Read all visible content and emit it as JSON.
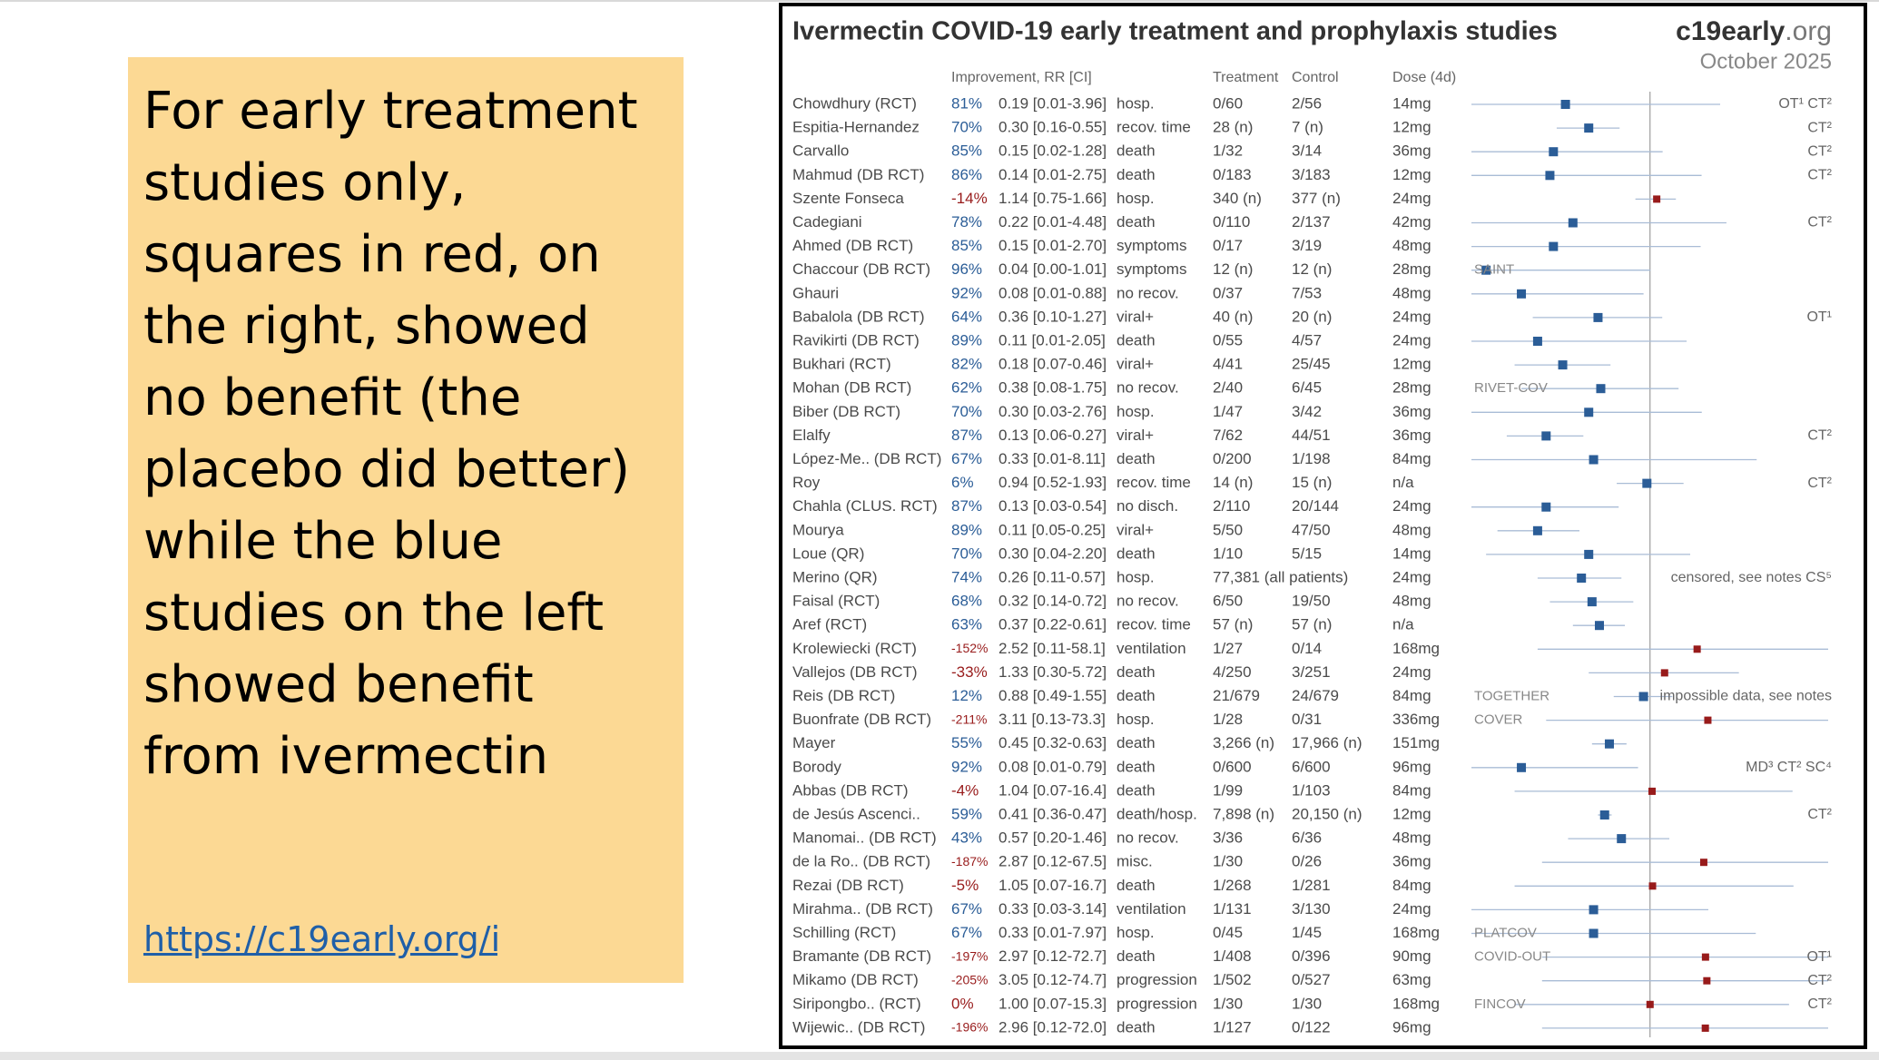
{
  "slide": {
    "text": "For early treatment studies only, squares in red, on the right, showed no benefit (the placebo did better) while the blue studies on the left showed benefit from ivermectin",
    "link": "https://c19early.org/i"
  },
  "forest": {
    "title": "Ivermectin COVID-19 early treatment and prophylaxis studies",
    "brand_main": "c19early",
    "brand_suffix": ".org",
    "date": "October 2025",
    "headers": {
      "improvement": "Improvement, RR [CI]",
      "treatment": "Treatment",
      "control": "Control",
      "dose": "Dose (4d)"
    },
    "xlim": [
      0.03,
      33
    ],
    "log_scale": true,
    "reference": 1,
    "colors": {
      "benefit": "#2b5d97",
      "harm": "#981b1b"
    },
    "rows": [
      {
        "name": "Chowdhury (RCT)",
        "improvement": "81%",
        "rr": 0.19,
        "ci": [
          0.01,
          3.96
        ],
        "rr_label": "0.19 [0.01-3.96]",
        "outcome": "hosp.",
        "treatment": "0/60",
        "control": "2/56",
        "dose": "14mg",
        "note": "OT¹ CT²"
      },
      {
        "name": "Espitia-Hernandez",
        "improvement": "70%",
        "rr": 0.3,
        "ci": [
          0.16,
          0.55
        ],
        "rr_label": "0.30 [0.16-0.55]",
        "outcome": "recov. time",
        "treatment": "28 (n)",
        "control": "7 (n)",
        "dose": "12mg",
        "note": "CT²"
      },
      {
        "name": "Carvallo",
        "improvement": "85%",
        "rr": 0.15,
        "ci": [
          0.02,
          1.28
        ],
        "rr_label": "0.15 [0.02-1.28]",
        "outcome": "death",
        "treatment": "1/32",
        "control": "3/14",
        "dose": "36mg",
        "note": "CT²"
      },
      {
        "name": "Mahmud (DB RCT)",
        "improvement": "86%",
        "rr": 0.14,
        "ci": [
          0.01,
          2.75
        ],
        "rr_label": "0.14 [0.01-2.75]",
        "outcome": "death",
        "treatment": "0/183",
        "control": "3/183",
        "dose": "12mg",
        "note": "CT²"
      },
      {
        "name": "Szente Fonseca",
        "improvement": "-14%",
        "rr": 1.14,
        "ci": [
          0.75,
          1.66
        ],
        "rr_label": "1.14 [0.75-1.66]",
        "outcome": "hosp.",
        "treatment": "340 (n)",
        "control": "377 (n)",
        "dose": "24mg"
      },
      {
        "name": "Cadegiani",
        "improvement": "78%",
        "rr": 0.22,
        "ci": [
          0.01,
          4.48
        ],
        "rr_label": "0.22 [0.01-4.48]",
        "outcome": "death",
        "treatment": "0/110",
        "control": "2/137",
        "dose": "42mg",
        "note": "CT²"
      },
      {
        "name": "Ahmed (DB RCT)",
        "improvement": "85%",
        "rr": 0.15,
        "ci": [
          0.01,
          2.7
        ],
        "rr_label": "0.15 [0.01-2.70]",
        "outcome": "symptoms",
        "treatment": "0/17",
        "control": "3/19",
        "dose": "48mg"
      },
      {
        "name": "Chaccour (DB RCT)",
        "improvement": "96%",
        "rr": 0.04,
        "ci": [
          0.0,
          1.01
        ],
        "rr_label": "0.04 [0.00-1.01]",
        "outcome": "symptoms",
        "treatment": "12 (n)",
        "control": "12 (n)",
        "dose": "28mg",
        "trial": "SAINT"
      },
      {
        "name": "Ghauri",
        "improvement": "92%",
        "rr": 0.08,
        "ci": [
          0.01,
          0.88
        ],
        "rr_label": "0.08 [0.01-0.88]",
        "outcome": "no recov.",
        "treatment": "0/37",
        "control": "7/53",
        "dose": "48mg"
      },
      {
        "name": "Babalola (DB RCT)",
        "improvement": "64%",
        "rr": 0.36,
        "ci": [
          0.1,
          1.27
        ],
        "rr_label": "0.36 [0.10-1.27]",
        "outcome": "viral+",
        "treatment": "40 (n)",
        "control": "20 (n)",
        "dose": "24mg",
        "note": "OT¹"
      },
      {
        "name": "Ravikirti (DB RCT)",
        "improvement": "89%",
        "rr": 0.11,
        "ci": [
          0.01,
          2.05
        ],
        "rr_label": "0.11 [0.01-2.05]",
        "outcome": "death",
        "treatment": "0/55",
        "control": "4/57",
        "dose": "24mg"
      },
      {
        "name": "Bukhari (RCT)",
        "improvement": "82%",
        "rr": 0.18,
        "ci": [
          0.07,
          0.46
        ],
        "rr_label": "0.18 [0.07-0.46]",
        "outcome": "viral+",
        "treatment": "4/41",
        "control": "25/45",
        "dose": "12mg"
      },
      {
        "name": "Mohan (DB RCT)",
        "improvement": "62%",
        "rr": 0.38,
        "ci": [
          0.08,
          1.75
        ],
        "rr_label": "0.38 [0.08-1.75]",
        "outcome": "no recov.",
        "treatment": "2/40",
        "control": "6/45",
        "dose": "28mg",
        "trial": "RIVET-COV"
      },
      {
        "name": "Biber (DB RCT)",
        "improvement": "70%",
        "rr": 0.3,
        "ci": [
          0.03,
          2.76
        ],
        "rr_label": "0.30 [0.03-2.76]",
        "outcome": "hosp.",
        "treatment": "1/47",
        "control": "3/42",
        "dose": "36mg"
      },
      {
        "name": "Elalfy",
        "improvement": "87%",
        "rr": 0.13,
        "ci": [
          0.06,
          0.27
        ],
        "rr_label": "0.13 [0.06-0.27]",
        "outcome": "viral+",
        "treatment": "7/62",
        "control": "44/51",
        "dose": "36mg",
        "note": "CT²"
      },
      {
        "name": "López-Me.. (DB RCT)",
        "improvement": "67%",
        "rr": 0.33,
        "ci": [
          0.01,
          8.11
        ],
        "rr_label": "0.33 [0.01-8.11]",
        "outcome": "death",
        "treatment": "0/200",
        "control": "1/198",
        "dose": "84mg"
      },
      {
        "name": "Roy",
        "improvement": "6%",
        "rr": 0.94,
        "ci": [
          0.52,
          1.93
        ],
        "rr_label": "0.94 [0.52-1.93]",
        "outcome": "recov. time",
        "treatment": "14 (n)",
        "control": "15 (n)",
        "dose": "n/a",
        "note": "CT²"
      },
      {
        "name": "Chahla (CLUS. RCT)",
        "improvement": "87%",
        "rr": 0.13,
        "ci": [
          0.03,
          0.54
        ],
        "rr_label": "0.13 [0.03-0.54]",
        "outcome": "no disch.",
        "treatment": "2/110",
        "control": "20/144",
        "dose": "24mg"
      },
      {
        "name": "Mourya",
        "improvement": "89%",
        "rr": 0.11,
        "ci": [
          0.05,
          0.25
        ],
        "rr_label": "0.11 [0.05-0.25]",
        "outcome": "viral+",
        "treatment": "5/50",
        "control": "47/50",
        "dose": "48mg"
      },
      {
        "name": "Loue (QR)",
        "improvement": "70%",
        "rr": 0.3,
        "ci": [
          0.04,
          2.2
        ],
        "rr_label": "0.30 [0.04-2.20]",
        "outcome": "death",
        "treatment": "1/10",
        "control": "5/15",
        "dose": "14mg"
      },
      {
        "name": "Merino (QR)",
        "improvement": "74%",
        "rr": 0.26,
        "ci": [
          0.11,
          0.57
        ],
        "rr_label": "0.26 [0.11-0.57]",
        "outcome": "hosp.",
        "treatment": "77,381 (all patients)",
        "dose": "24mg",
        "note": "censored, see notes CS⁵"
      },
      {
        "name": "Faisal (RCT)",
        "improvement": "68%",
        "rr": 0.32,
        "ci": [
          0.14,
          0.72
        ],
        "rr_label": "0.32 [0.14-0.72]",
        "outcome": "no recov.",
        "treatment": "6/50",
        "control": "19/50",
        "dose": "48mg"
      },
      {
        "name": "Aref (RCT)",
        "improvement": "63%",
        "rr": 0.37,
        "ci": [
          0.22,
          0.61
        ],
        "rr_label": "0.37 [0.22-0.61]",
        "outcome": "recov. time",
        "treatment": "57 (n)",
        "control": "57 (n)",
        "dose": "n/a"
      },
      {
        "name": "Krolewiecki (RCT)",
        "improvement": "-152%",
        "rr": 2.52,
        "ci": [
          0.11,
          58.1
        ],
        "rr_label": "2.52 [0.11-58.1]",
        "outcome": "ventilation",
        "treatment": "1/27",
        "control": "0/14",
        "dose": "168mg"
      },
      {
        "name": "Vallejos (DB RCT)",
        "improvement": "-33%",
        "rr": 1.33,
        "ci": [
          0.3,
          5.72
        ],
        "rr_label": "1.33 [0.30-5.72]",
        "outcome": "death",
        "treatment": "4/250",
        "control": "3/251",
        "dose": "24mg"
      },
      {
        "name": "Reis (DB RCT)",
        "improvement": "12%",
        "rr": 0.88,
        "ci": [
          0.49,
          1.55
        ],
        "rr_label": "0.88 [0.49-1.55]",
        "outcome": "death",
        "treatment": "21/679",
        "control": "24/679",
        "dose": "84mg",
        "trial": "TOGETHER",
        "note": "impossible data, see notes"
      },
      {
        "name": "Buonfrate (DB RCT)",
        "improvement": "-211%",
        "rr": 3.11,
        "ci": [
          0.13,
          73.3
        ],
        "rr_label": "3.11 [0.13-73.3]",
        "outcome": "hosp.",
        "treatment": "1/28",
        "control": "0/31",
        "dose": "336mg",
        "trial": "COVER"
      },
      {
        "name": "Mayer",
        "improvement": "55%",
        "rr": 0.45,
        "ci": [
          0.32,
          0.63
        ],
        "rr_label": "0.45 [0.32-0.63]",
        "outcome": "death",
        "treatment": "3,266 (n)",
        "control": "17,966 (n)",
        "dose": "151mg"
      },
      {
        "name": "Borody",
        "improvement": "92%",
        "rr": 0.08,
        "ci": [
          0.01,
          0.79
        ],
        "rr_label": "0.08 [0.01-0.79]",
        "outcome": "death",
        "treatment": "0/600",
        "control": "6/600",
        "dose": "96mg",
        "note": "MD³ CT² SC⁴"
      },
      {
        "name": "Abbas (DB RCT)",
        "improvement": "-4%",
        "rr": 1.04,
        "ci": [
          0.07,
          16.4
        ],
        "rr_label": "1.04 [0.07-16.4]",
        "outcome": "death",
        "treatment": "1/99",
        "control": "1/103",
        "dose": "84mg"
      },
      {
        "name": "de Jesús Ascenci..",
        "improvement": "59%",
        "rr": 0.41,
        "ci": [
          0.36,
          0.47
        ],
        "rr_label": "0.41 [0.36-0.47]",
        "outcome": "death/hosp.",
        "treatment": "7,898 (n)",
        "control": "20,150 (n)",
        "dose": "12mg",
        "note": "CT²"
      },
      {
        "name": "Manomai.. (DB RCT)",
        "improvement": "43%",
        "rr": 0.57,
        "ci": [
          0.2,
          1.46
        ],
        "rr_label": "0.57 [0.20-1.46]",
        "outcome": "no recov.",
        "treatment": "3/36",
        "control": "6/36",
        "dose": "48mg"
      },
      {
        "name": "de la Ro.. (DB RCT)",
        "improvement": "-187%",
        "rr": 2.87,
        "ci": [
          0.12,
          67.5
        ],
        "rr_label": "2.87 [0.12-67.5]",
        "outcome": "misc.",
        "treatment": "1/30",
        "control": "0/26",
        "dose": "36mg"
      },
      {
        "name": "Rezai (DB RCT)",
        "improvement": "-5%",
        "rr": 1.05,
        "ci": [
          0.07,
          16.7
        ],
        "rr_label": "1.05 [0.07-16.7]",
        "outcome": "death",
        "treatment": "1/268",
        "control": "1/281",
        "dose": "84mg"
      },
      {
        "name": "Mirahma.. (DB RCT)",
        "improvement": "67%",
        "rr": 0.33,
        "ci": [
          0.03,
          3.14
        ],
        "rr_label": "0.33 [0.03-3.14]",
        "outcome": "ventilation",
        "treatment": "1/131",
        "control": "3/130",
        "dose": "24mg"
      },
      {
        "name": "Schilling (RCT)",
        "improvement": "67%",
        "rr": 0.33,
        "ci": [
          0.01,
          7.97
        ],
        "rr_label": "0.33 [0.01-7.97]",
        "outcome": "hosp.",
        "treatment": "0/45",
        "control": "1/45",
        "dose": "168mg",
        "trial": "PLATCOV"
      },
      {
        "name": "Bramante (DB RCT)",
        "improvement": "-197%",
        "rr": 2.97,
        "ci": [
          0.12,
          72.7
        ],
        "rr_label": "2.97 [0.12-72.7]",
        "outcome": "death",
        "treatment": "1/408",
        "control": "0/396",
        "dose": "90mg",
        "trial": "COVID-OUT",
        "note": "OT¹"
      },
      {
        "name": "Mikamo (DB RCT)",
        "improvement": "-205%",
        "rr": 3.05,
        "ci": [
          0.12,
          74.7
        ],
        "rr_label": "3.05 [0.12-74.7]",
        "outcome": "progression",
        "treatment": "1/502",
        "control": "0/527",
        "dose": "63mg",
        "note": "CT²"
      },
      {
        "name": "Siripongbo.. (RCT)",
        "improvement": "0%",
        "rr": 1.0,
        "ci": [
          0.07,
          15.3
        ],
        "rr_label": "1.00 [0.07-15.3]",
        "outcome": "progression",
        "treatment": "1/30",
        "control": "1/30",
        "dose": "168mg",
        "trial": "FINCOV",
        "note": "CT²"
      },
      {
        "name": "Wijewic.. (DB RCT)",
        "improvement": "-196%",
        "rr": 2.96,
        "ci": [
          0.12,
          72.0
        ],
        "rr_label": "2.96 [0.12-72.0]",
        "outcome": "death",
        "treatment": "1/127",
        "control": "0/122",
        "dose": "96mg"
      }
    ]
  }
}
